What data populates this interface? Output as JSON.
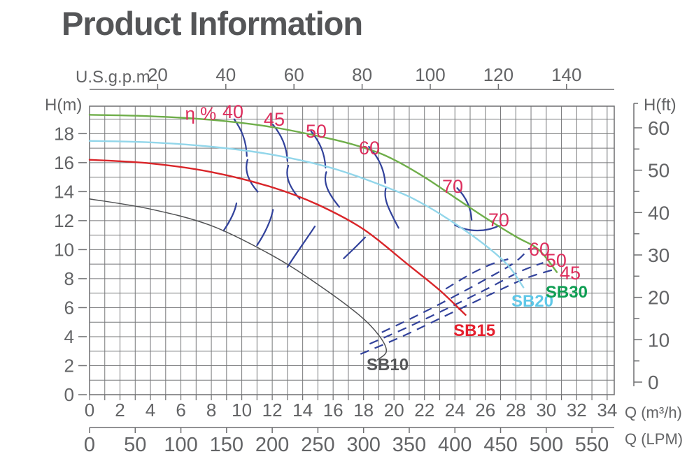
{
  "title": "Product Information",
  "colors": {
    "title_text": "#545557",
    "axis_text": "#636466",
    "axis_line": "#6e6f71",
    "grid_line": "#77787a",
    "efficiency_line": "#32429b",
    "efficiency_label": "#dd2e5d"
  },
  "chart_data": {
    "type": "line",
    "title": "",
    "xlabel_bottom_primary": "Q (m³/h)",
    "xlabel_bottom_secondary": "Q (LPM)",
    "xlabel_top": "U.S.g.p.m",
    "ylabel_left": "H(m)",
    "ylabel_right": "H(ft)",
    "xlim_m3h": [
      0,
      34.4
    ],
    "ylim_m": [
      0,
      19.9
    ],
    "grid": true,
    "axes": {
      "top_gpm": {
        "label": "U.S.g.p.m",
        "ticks": [
          20,
          40,
          60,
          80,
          100,
          120,
          140
        ]
      },
      "left_m": {
        "label": "H(m)",
        "ticks": [
          0,
          2,
          4,
          6,
          8,
          10,
          12,
          14,
          16,
          18
        ]
      },
      "right_ft": {
        "label": "H(ft)",
        "ticks": [
          0,
          10,
          20,
          30,
          40,
          50,
          60
        ],
        "minor_step": 5
      },
      "bottom_m3h": {
        "label": "Q (m³/h)",
        "ticks": [
          0,
          2,
          4,
          6,
          8,
          10,
          12,
          14,
          16,
          18,
          20,
          22,
          24,
          26,
          28,
          30,
          32,
          34
        ],
        "minor_step": 1
      },
      "bottom_lpm": {
        "label": "Q (LPM)",
        "ticks": [
          0,
          50,
          100,
          150,
          200,
          250,
          300,
          350,
          400,
          450,
          500,
          550
        ]
      }
    },
    "series": [
      {
        "name": "SB30",
        "color": "#6fae4a",
        "width": 2.4,
        "points": [
          [
            0,
            19.3
          ],
          [
            4,
            19.2
          ],
          [
            8,
            18.95
          ],
          [
            12,
            18.45
          ],
          [
            16,
            17.6
          ],
          [
            18.4,
            16.9
          ],
          [
            20,
            16.2
          ],
          [
            22,
            15.0
          ],
          [
            24,
            13.6
          ],
          [
            26,
            12.2
          ],
          [
            28,
            10.9
          ],
          [
            29.5,
            10.0
          ],
          [
            30.7,
            8.45
          ]
        ]
      },
      {
        "name": "SB20",
        "color": "#92d6ea",
        "width": 2.4,
        "points": [
          [
            0,
            17.5
          ],
          [
            4,
            17.4
          ],
          [
            8,
            17.1
          ],
          [
            12,
            16.55
          ],
          [
            16,
            15.6
          ],
          [
            20,
            14.1
          ],
          [
            22,
            13.1
          ],
          [
            24,
            11.8
          ],
          [
            26,
            10.3
          ],
          [
            27.5,
            8.9
          ],
          [
            28.5,
            7.4
          ]
        ]
      },
      {
        "name": "SB15",
        "color": "#d92529",
        "width": 2.4,
        "points": [
          [
            0,
            16.2
          ],
          [
            4,
            15.95
          ],
          [
            8,
            15.35
          ],
          [
            12,
            14.3
          ],
          [
            15,
            13.1
          ],
          [
            18,
            11.4
          ],
          [
            21,
            8.9
          ],
          [
            23,
            7.2
          ],
          [
            24.7,
            5.5
          ]
        ]
      },
      {
        "name": "SB10",
        "color": "#515254",
        "width": 1.5,
        "points": [
          [
            0,
            13.5
          ],
          [
            4,
            12.8
          ],
          [
            8,
            11.65
          ],
          [
            12,
            9.6
          ],
          [
            15,
            7.6
          ],
          [
            17.7,
            5.5
          ],
          [
            19.0,
            4.1
          ],
          [
            19.5,
            3.0
          ],
          [
            18.9,
            2.4
          ]
        ]
      }
    ],
    "efficiency_contours": {
      "color": "#32429b",
      "solid_arcs": [
        {
          "id": "eta40-a",
          "d": [
            [
              9.5,
              19.0
            ],
            [
              10.0,
              18.25
            ],
            [
              10.3,
              17.5
            ],
            [
              10.33,
              16.45
            ]
          ]
        },
        {
          "id": "eta45-a",
          "d": [
            [
              12.05,
              18.62
            ],
            [
              12.6,
              17.9
            ],
            [
              12.95,
              17.15
            ],
            [
              13.0,
              16.1
            ]
          ]
        },
        {
          "id": "eta50-a",
          "d": [
            [
              14.55,
              18.17
            ],
            [
              15.1,
              17.45
            ],
            [
              15.45,
              16.7
            ],
            [
              15.5,
              15.65
            ]
          ]
        },
        {
          "id": "eta60-a",
          "d": [
            [
              18.35,
              17.1
            ],
            [
              18.95,
              16.4
            ],
            [
              19.35,
              15.6
            ],
            [
              19.42,
              14.6
            ]
          ]
        },
        {
          "id": "eta70-a",
          "d": [
            [
              24.15,
              14.25
            ],
            [
              24.7,
              13.65
            ],
            [
              25.05,
              12.95
            ],
            [
              25.1,
              12.05
            ]
          ]
        },
        {
          "id": "eta40-b",
          "d": [
            [
              10.38,
              16.2
            ],
            [
              10.15,
              15.45
            ],
            [
              10.45,
              14.7
            ],
            [
              11.05,
              14.0
            ]
          ]
        },
        {
          "id": "eta45-b",
          "d": [
            [
              13.05,
              15.8
            ],
            [
              12.82,
              15.05
            ],
            [
              13.15,
              14.3
            ],
            [
              13.8,
              13.5
            ]
          ]
        },
        {
          "id": "eta50-b",
          "d": [
            [
              15.55,
              15.35
            ],
            [
              15.32,
              14.6
            ],
            [
              15.7,
              13.85
            ],
            [
              16.4,
              12.95
            ]
          ]
        },
        {
          "id": "eta60-b",
          "d": [
            [
              19.48,
              14.3
            ],
            [
              19.25,
              13.55
            ],
            [
              19.65,
              12.8
            ],
            [
              20.3,
              11.5
            ]
          ]
        },
        {
          "id": "eta40-c",
          "d": [
            [
              8.8,
              11.3
            ],
            [
              9.25,
              12.0
            ],
            [
              9.55,
              12.6
            ],
            [
              9.65,
              13.2
            ]
          ]
        },
        {
          "id": "eta45-c",
          "d": [
            [
              11.0,
              10.3
            ],
            [
              11.5,
              11.1
            ],
            [
              11.9,
              11.9
            ],
            [
              12.05,
              12.75
            ]
          ]
        },
        {
          "id": "eta50-c",
          "d": [
            [
              13.0,
              8.8
            ],
            [
              13.6,
              9.8
            ],
            [
              14.3,
              10.8
            ],
            [
              14.8,
              11.6
            ]
          ]
        },
        {
          "id": "eta60-c",
          "d": [
            [
              16.7,
              9.4
            ],
            [
              17.2,
              9.9
            ],
            [
              17.7,
              10.4
            ],
            [
              18.1,
              10.85
            ]
          ]
        },
        {
          "id": "eta70-hook",
          "d": [
            [
              24.0,
              11.7
            ],
            [
              24.9,
              11.2
            ],
            [
              26.0,
              11.2
            ],
            [
              26.9,
              11.65
            ]
          ]
        }
      ],
      "dashed_sweeps": [
        {
          "id": "eta45-d",
          "points": [
            [
              17.8,
              2.8
            ],
            [
              20.5,
              4.0
            ],
            [
              23.5,
              5.5
            ],
            [
              26.3,
              6.9
            ],
            [
              28.6,
              8.0
            ],
            [
              30.4,
              8.6
            ]
          ]
        },
        {
          "id": "eta50-d",
          "points": [
            [
              18.4,
              3.5
            ],
            [
              21.0,
              4.7
            ],
            [
              23.8,
              6.1
            ],
            [
              26.3,
              7.4
            ],
            [
              28.3,
              8.5
            ],
            [
              29.8,
              9.1
            ]
          ]
        },
        {
          "id": "eta60-d",
          "points": [
            [
              19.2,
              4.3
            ],
            [
              21.6,
              5.5
            ],
            [
              24.0,
              6.8
            ],
            [
              26.1,
              8.0
            ],
            [
              27.9,
              9.1
            ],
            [
              28.9,
              10.1
            ]
          ]
        },
        {
          "id": "eta70-d",
          "points": [
            [
              23.4,
              7.3
            ],
            [
              25.0,
              8.3
            ],
            [
              26.4,
              9.0
            ],
            [
              27.5,
              9.35
            ]
          ]
        }
      ]
    },
    "annotations": [
      {
        "text": "η %",
        "q": 7.3,
        "h": 19.4,
        "color": "#dd2e5d",
        "size": 26,
        "bold": false
      },
      {
        "text": "40",
        "q": 9.42,
        "h": 19.5,
        "color": "#dd2e5d",
        "size": 27,
        "bold": false
      },
      {
        "text": "45",
        "q": 12.13,
        "h": 18.98,
        "color": "#dd2e5d",
        "size": 27,
        "bold": false
      },
      {
        "text": "50",
        "q": 14.89,
        "h": 18.16,
        "color": "#dd2e5d",
        "size": 27,
        "bold": false
      },
      {
        "text": "60",
        "q": 18.38,
        "h": 17.0,
        "color": "#dd2e5d",
        "size": 27,
        "bold": false
      },
      {
        "text": "70",
        "q": 23.85,
        "h": 14.35,
        "color": "#dd2e5d",
        "size": 27,
        "bold": false
      },
      {
        "text": "70",
        "q": 26.88,
        "h": 12.04,
        "color": "#dd2e5d",
        "size": 27,
        "bold": false
      },
      {
        "text": "60",
        "q": 29.55,
        "h": 10.02,
        "color": "#dd2e5d",
        "size": 27,
        "bold": false
      },
      {
        "text": "50",
        "q": 30.65,
        "h": 9.25,
        "color": "#dd2e5d",
        "size": 27,
        "bold": false
      },
      {
        "text": "45",
        "q": 31.57,
        "h": 8.38,
        "color": "#dd2e5d",
        "size": 27,
        "bold": false
      },
      {
        "text": "SB10",
        "q": 19.58,
        "h": 2.12,
        "color": "#57585a",
        "size": 24,
        "bold": true
      },
      {
        "text": "SB15",
        "q": 25.28,
        "h": 4.48,
        "color": "#e5202e",
        "size": 24,
        "bold": true
      },
      {
        "text": "SB20",
        "q": 29.09,
        "h": 6.5,
        "color": "#5fc8e8",
        "size": 24,
        "bold": true
      },
      {
        "text": "SB30",
        "q": 31.34,
        "h": 7.13,
        "color": "#0f9e53",
        "size": 24,
        "bold": true
      }
    ]
  }
}
